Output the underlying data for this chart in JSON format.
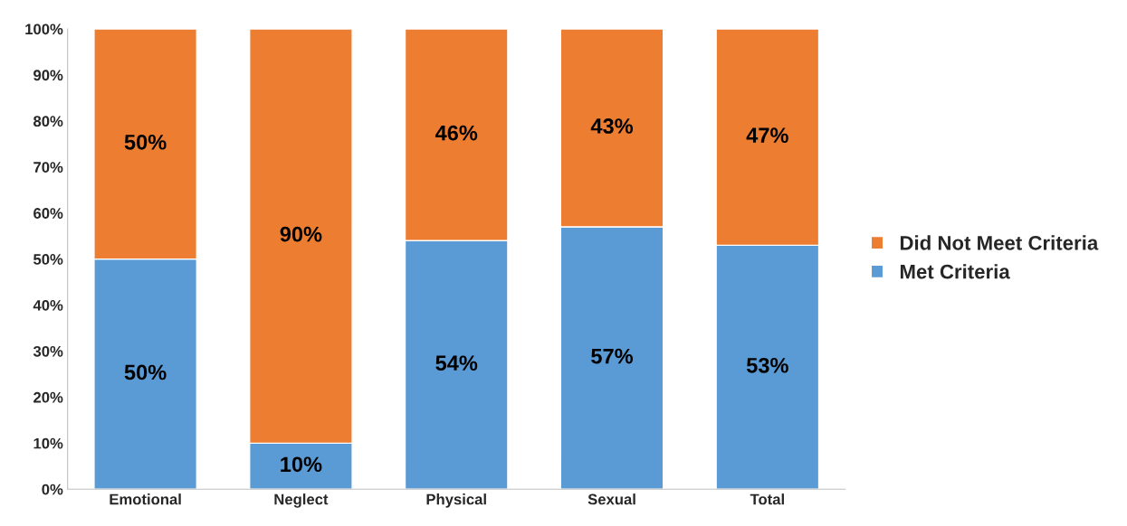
{
  "chart_data": {
    "type": "bar",
    "stacked": true,
    "categories": [
      "Emotional",
      "Neglect",
      "Physical",
      "Sexual",
      "Total"
    ],
    "series": [
      {
        "name": "Met Criteria",
        "color": "#5b9bd5",
        "values": [
          50,
          10,
          54,
          57,
          53
        ],
        "value_labels": [
          "50%",
          "10%",
          "54%",
          "57%",
          "53%"
        ]
      },
      {
        "name": "Did Not Meet Criteria",
        "color": "#ed7d31",
        "values": [
          50,
          90,
          46,
          43,
          47
        ],
        "value_labels": [
          "50%",
          "90%",
          "46%",
          "43%",
          "47%"
        ]
      }
    ],
    "ylim": [
      0,
      100
    ],
    "yticks": [
      {
        "value": 0,
        "label": "0%"
      },
      {
        "value": 10,
        "label": "10%"
      },
      {
        "value": 20,
        "label": "20%"
      },
      {
        "value": 30,
        "label": "30%"
      },
      {
        "value": 40,
        "label": "40%"
      },
      {
        "value": 50,
        "label": "50%"
      },
      {
        "value": 60,
        "label": "60%"
      },
      {
        "value": 70,
        "label": "70%"
      },
      {
        "value": 80,
        "label": "80%"
      },
      {
        "value": 90,
        "label": "90%"
      },
      {
        "value": 100,
        "label": "100%"
      }
    ],
    "grid": false,
    "legend": "right"
  }
}
